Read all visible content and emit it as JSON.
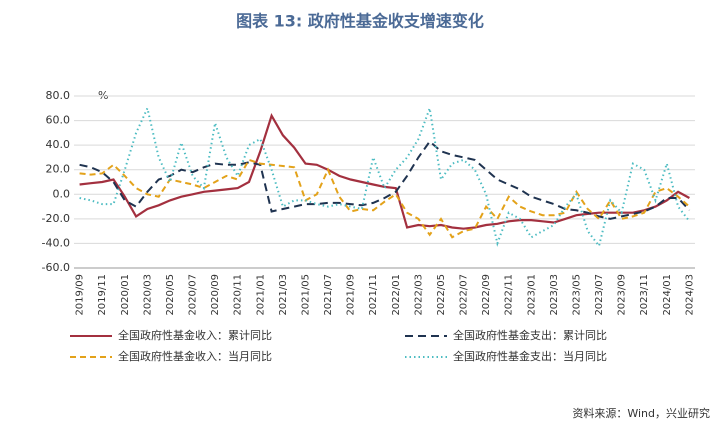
{
  "chart_data": {
    "type": "line",
    "title": "图表 13: 政府性基金收支增速变化",
    "y_unit": "%",
    "source": "资料来源：Wind，兴业研究",
    "categories": [
      "2019/09",
      null,
      "2019/11",
      null,
      "2020/01",
      null,
      "2020/03",
      null,
      "2020/05",
      null,
      "2020/07",
      null,
      "2020/09",
      null,
      "2020/11",
      null,
      "2021/01",
      null,
      "2021/03",
      null,
      "2021/05",
      null,
      "2021/07",
      null,
      "2021/09",
      null,
      "2021/11",
      null,
      "2022/01",
      null,
      "2022/03",
      null,
      "2022/05",
      null,
      "2022/07",
      null,
      "2022/09",
      null,
      "2022/11",
      null,
      "2023/01",
      null,
      "2023/03",
      null,
      "2023/05",
      null,
      "2023/07",
      null,
      "2023/09",
      null,
      "2023/11",
      null,
      "2024/01",
      null,
      "2024/03"
    ],
    "series": [
      {
        "name": "全国政府性基金收入：累计同比",
        "color": "#a3303f",
        "dash": "solid",
        "values": [
          8,
          9,
          10,
          12,
          -2,
          -18,
          -12,
          -9,
          -5,
          -2,
          0,
          2,
          3,
          4,
          5,
          10,
          35,
          64,
          48,
          38,
          25,
          24,
          20,
          15,
          12,
          10,
          8,
          6,
          5,
          -27,
          -25,
          -26,
          -25,
          -27,
          -28,
          -27,
          -25,
          -24,
          -22,
          -21,
          -21,
          -22,
          -23,
          -20,
          -17,
          -16,
          -15,
          -15,
          -15,
          -15,
          -13,
          -10,
          -5,
          2,
          -3
        ]
      },
      {
        "name": "全国政府性基金支出：累计同比",
        "color": "#1f3350",
        "dash": "long",
        "values": [
          24,
          22,
          18,
          10,
          -5,
          -10,
          2,
          12,
          15,
          20,
          18,
          22,
          25,
          24,
          24,
          26,
          24,
          -14,
          -12,
          -10,
          -8,
          -8,
          -7,
          -7,
          -8,
          -9,
          -7,
          -3,
          2,
          15,
          30,
          43,
          35,
          32,
          30,
          28,
          20,
          12,
          8,
          4,
          -2,
          -5,
          -8,
          -12,
          -13,
          -15,
          -18,
          -20,
          -18,
          -16,
          -14,
          -10,
          -3,
          -3,
          -13
        ]
      },
      {
        "name": "全国政府性基金收入：当月同比",
        "color": "#e3a21a",
        "dash": "short",
        "values": [
          17,
          16,
          17,
          24,
          15,
          5,
          0,
          -2,
          12,
          10,
          8,
          5,
          10,
          15,
          12,
          28,
          25,
          24,
          23,
          22,
          -5,
          0,
          20,
          -2,
          -14,
          -12,
          -13,
          -6,
          0,
          -15,
          -20,
          -33,
          -20,
          -35,
          -30,
          -28,
          -10,
          -20,
          -2,
          -10,
          -14,
          -17,
          -17,
          -15,
          2,
          -12,
          -20,
          -5,
          -20,
          -18,
          -15,
          2,
          5,
          -2,
          -10
        ]
      },
      {
        "name": "全国政府性基金支出：当月同比",
        "color": "#4dbcc2",
        "dash": "dot",
        "values": [
          -3,
          -5,
          -8,
          -8,
          20,
          50,
          70,
          30,
          10,
          42,
          15,
          5,
          58,
          30,
          15,
          40,
          45,
          20,
          -10,
          -5,
          -5,
          -8,
          -10,
          -8,
          -10,
          -12,
          30,
          5,
          20,
          30,
          45,
          70,
          12,
          25,
          28,
          20,
          0,
          -40,
          -15,
          -20,
          -35,
          -30,
          -25,
          -10,
          0,
          -30,
          -42,
          -5,
          -15,
          25,
          20,
          -5,
          25,
          -10,
          -22
        ]
      }
    ],
    "ylim": [
      -60,
      80
    ],
    "yticks": [
      {
        "value": -60,
        "label": "-60.0"
      },
      {
        "value": -40,
        "label": "-40.0"
      },
      {
        "value": -20,
        "label": "-20.0"
      },
      {
        "value": 0,
        "label": "0.0"
      },
      {
        "value": 20,
        "label": "20.0"
      },
      {
        "value": 40,
        "label": "40.0"
      },
      {
        "value": 60,
        "label": "60.0"
      },
      {
        "value": 80,
        "label": "80.0"
      }
    ],
    "grid": true
  }
}
